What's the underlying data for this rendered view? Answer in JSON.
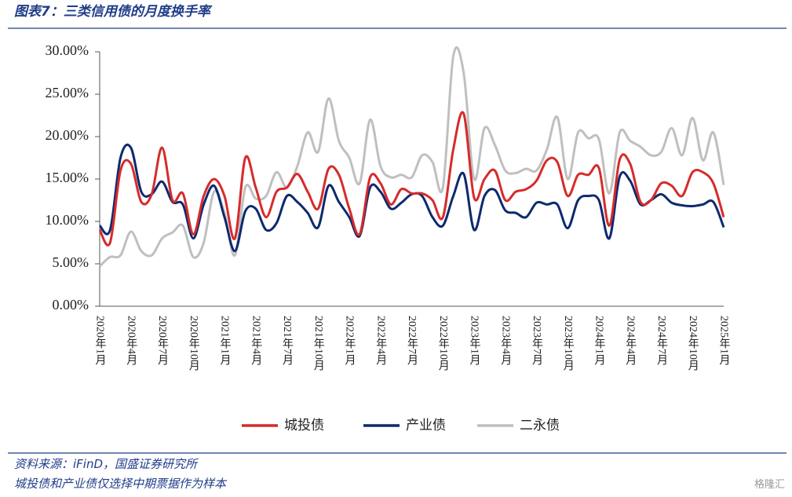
{
  "header": {
    "title": "图表7：三类信用债的月度换手率"
  },
  "chart_data": {
    "type": "line",
    "categories": [
      "2020年1月",
      null,
      null,
      "2020年4月",
      null,
      null,
      "2020年7月",
      null,
      null,
      "2020年10月",
      null,
      null,
      "2021年1月",
      null,
      null,
      "2021年4月",
      null,
      null,
      "2021年7月",
      null,
      null,
      "2021年10月",
      null,
      null,
      "2022年1月",
      null,
      null,
      "2022年4月",
      null,
      null,
      "2022年7月",
      null,
      null,
      "2022年10月",
      null,
      null,
      "2023年1月",
      null,
      null,
      "2023年4月",
      null,
      null,
      "2023年7月",
      null,
      null,
      "2023年10月",
      null,
      null,
      "2024年1月",
      null,
      null,
      "2024年4月",
      null,
      null,
      "2024年7月",
      null,
      null,
      "2024年10月",
      null,
      null,
      "2025年1月"
    ],
    "series": [
      {
        "name": "城投债",
        "color": "#d62b2b",
        "values": [
          9.0,
          7.5,
          16.0,
          16.8,
          12.3,
          13.2,
          18.7,
          12.5,
          13.3,
          8.5,
          13.0,
          15.0,
          13.0,
          8.0,
          17.5,
          14.0,
          10.5,
          13.5,
          14.0,
          15.6,
          13.5,
          11.5,
          16.2,
          15.5,
          11.5,
          8.5,
          15.2,
          14.5,
          12.0,
          13.8,
          13.3,
          13.3,
          12.5,
          10.5,
          18.5,
          22.7,
          12.8,
          15.0,
          16.0,
          12.5,
          13.5,
          13.8,
          14.8,
          17.2,
          17.0,
          13.0,
          15.5,
          15.5,
          16.3,
          9.5,
          17.3,
          16.8,
          12.3,
          12.5,
          14.5,
          14.2,
          13.0,
          15.8,
          15.8,
          14.5,
          10.5
        ]
      },
      {
        "name": "产业债",
        "color": "#0d2a6e",
        "values": [
          9.5,
          9.0,
          17.5,
          18.7,
          13.5,
          13.2,
          14.7,
          12.3,
          12.0,
          8.0,
          12.0,
          14.2,
          10.5,
          6.5,
          11.2,
          11.5,
          9.0,
          9.8,
          13.0,
          12.3,
          11.0,
          9.3,
          14.2,
          12.3,
          10.5,
          8.3,
          14.0,
          13.5,
          11.5,
          12.2,
          13.2,
          13.0,
          10.5,
          9.5,
          13.0,
          15.6,
          9.0,
          13.0,
          13.7,
          11.3,
          11.0,
          10.5,
          12.2,
          12.0,
          12.0,
          9.2,
          12.5,
          13.0,
          12.5,
          8.0,
          15.3,
          14.8,
          12.0,
          12.5,
          13.2,
          12.2,
          11.9,
          11.8,
          12.0,
          12.3,
          9.3
        ]
      },
      {
        "name": "二永债",
        "color": "#bfbfbf",
        "values": [
          4.7,
          5.8,
          6.0,
          8.8,
          6.5,
          6.0,
          8.0,
          8.7,
          9.5,
          5.8,
          7.5,
          13.5,
          11.0,
          6.0,
          14.0,
          12.7,
          13.0,
          15.8,
          14.0,
          16.5,
          20.5,
          18.2,
          24.5,
          19.5,
          17.5,
          14.5,
          22.0,
          16.5,
          15.2,
          15.5,
          15.2,
          17.8,
          17.0,
          14.0,
          29.5,
          27.5,
          15.0,
          21.0,
          19.0,
          16.0,
          15.7,
          16.2,
          16.0,
          18.5,
          22.3,
          15.0,
          20.5,
          19.8,
          19.7,
          13.3,
          20.5,
          19.5,
          18.8,
          17.8,
          18.2,
          21.0,
          17.8,
          22.2,
          17.2,
          20.5,
          14.3
        ]
      }
    ],
    "ylim": [
      0,
      30
    ],
    "yticks": [
      {
        "value": 0,
        "label": "0.00%"
      },
      {
        "value": 5,
        "label": "5.00%"
      },
      {
        "value": 10,
        "label": "10.00%"
      },
      {
        "value": 15,
        "label": "15.00%"
      },
      {
        "value": 20,
        "label": "20.00%"
      },
      {
        "value": 25,
        "label": "25.00%"
      },
      {
        "value": 30,
        "label": "30.00%"
      }
    ],
    "legend": "bottom"
  },
  "footer": {
    "source": "资料来源：iFinD，国盛证券研究所",
    "note": "城投债和产业债仅选择中期票据作为样本",
    "watermark": "格隆汇"
  }
}
